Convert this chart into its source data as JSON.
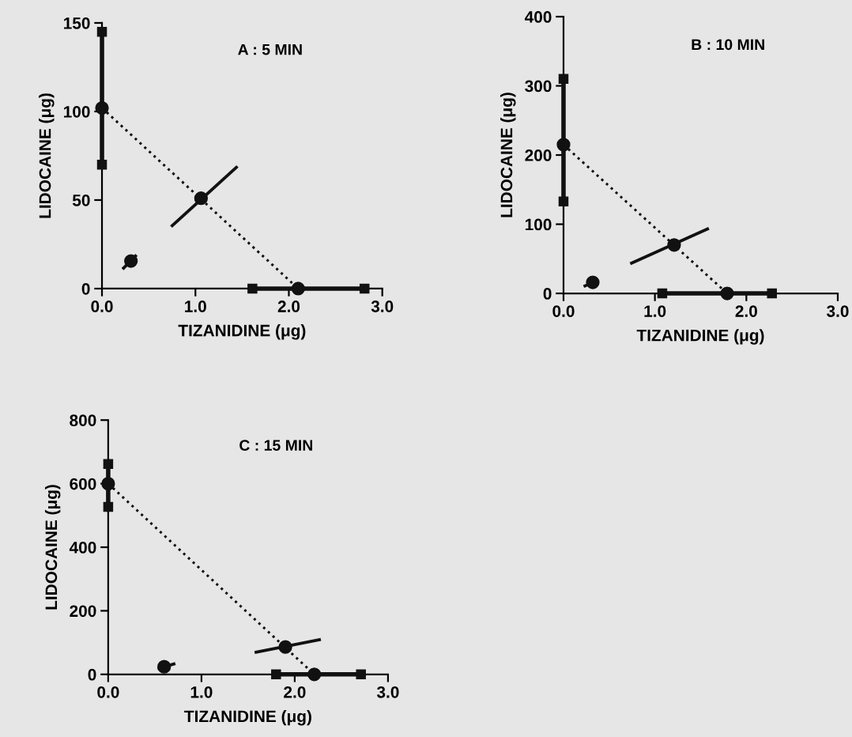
{
  "chart_data": [
    {
      "type": "scatter",
      "title": "A : 5 MIN",
      "xlabel": "TIZANIDINE (μg)",
      "ylabel": "LIDOCAINE (μg)",
      "xlim": [
        0,
        3.0
      ],
      "ylim": [
        0,
        150
      ],
      "xticks": [
        {
          "value": 0,
          "label": "0.0"
        },
        {
          "value": 1,
          "label": "1.0"
        },
        {
          "value": 2,
          "label": "2.0"
        },
        {
          "value": 3,
          "label": "3.0"
        }
      ],
      "yticks": [
        0,
        50,
        100,
        150
      ],
      "grid": false,
      "legend": false,
      "series": [
        {
          "type": "line",
          "color": "#111111",
          "line_style": "solid",
          "marker": "square",
          "x": [
            0,
            0
          ],
          "values": [
            70,
            145
          ]
        },
        {
          "type": "line",
          "color": "#111111",
          "line_style": "solid",
          "marker": "square",
          "x": [
            1.61,
            2.81
          ],
          "values": [
            0,
            0
          ]
        },
        {
          "type": "scatter",
          "color": "#111111",
          "marker": "circle",
          "x": [
            0,
            2.1,
            1.06,
            0.31
          ],
          "values": [
            102,
            0,
            51,
            15.6
          ]
        },
        {
          "type": "line",
          "color": "#111111",
          "line_style": "dotted",
          "x": [
            0,
            2.1
          ],
          "values": [
            102,
            0
          ]
        },
        {
          "type": "line",
          "color": "#111111",
          "line_style": "solid",
          "x": [
            0.74,
            1.45
          ],
          "values": [
            35,
            69
          ]
        },
        {
          "type": "line",
          "color": "#111111",
          "line_style": "solid",
          "x": [
            0.22,
            0.37
          ],
          "values": [
            11,
            19
          ]
        }
      ]
    },
    {
      "type": "scatter",
      "title": "B : 10 MIN",
      "xlabel": "TIZANIDINE (μg)",
      "ylabel": "LIDOCAINE (μg)",
      "xlim": [
        0,
        3.0
      ],
      "ylim": [
        0,
        400
      ],
      "xticks": [
        {
          "value": 0,
          "label": "0.0"
        },
        {
          "value": 1,
          "label": "1.0"
        },
        {
          "value": 2,
          "label": "2.0"
        },
        {
          "value": 3,
          "label": "3.0"
        }
      ],
      "yticks": [
        0,
        100,
        200,
        300,
        400
      ],
      "grid": false,
      "legend": false,
      "series": [
        {
          "type": "line",
          "color": "#111111",
          "line_style": "solid",
          "marker": "square",
          "x": [
            0,
            0
          ],
          "values": [
            133,
            310
          ]
        },
        {
          "type": "line",
          "color": "#111111",
          "line_style": "solid",
          "marker": "square",
          "x": [
            1.08,
            2.28
          ],
          "values": [
            0,
            0
          ]
        },
        {
          "type": "scatter",
          "color": "#111111",
          "marker": "circle",
          "x": [
            0,
            1.79,
            1.21,
            0.32
          ],
          "values": [
            215,
            0,
            70,
            16
          ]
        },
        {
          "type": "line",
          "color": "#111111",
          "line_style": "dotted",
          "x": [
            0,
            1.79
          ],
          "values": [
            215,
            0
          ]
        },
        {
          "type": "line",
          "color": "#111111",
          "line_style": "solid",
          "x": [
            0.73,
            1.59
          ],
          "values": [
            43,
            94
          ]
        },
        {
          "type": "line",
          "color": "#111111",
          "line_style": "solid",
          "x": [
            0.22,
            0.37
          ],
          "values": [
            10,
            18
          ]
        }
      ]
    },
    {
      "type": "scatter",
      "title": "C : 15 MIN",
      "xlabel": "TIZANIDINE (μg)",
      "ylabel": "LIDOCAINE (μg)",
      "xlim": [
        0,
        3.0
      ],
      "ylim": [
        0,
        800
      ],
      "xticks": [
        {
          "value": 0,
          "label": "0.0"
        },
        {
          "value": 1,
          "label": "1.0"
        },
        {
          "value": 2,
          "label": "2.0"
        },
        {
          "value": 3,
          "label": "3.0"
        }
      ],
      "yticks": [
        0,
        200,
        400,
        600,
        800
      ],
      "grid": false,
      "legend": false,
      "series": [
        {
          "type": "line",
          "color": "#111111",
          "line_style": "solid",
          "marker": "square",
          "x": [
            0,
            0
          ],
          "values": [
            527,
            662
          ]
        },
        {
          "type": "line",
          "color": "#111111",
          "line_style": "solid",
          "marker": "square",
          "x": [
            1.8,
            2.71
          ],
          "values": [
            0,
            0
          ]
        },
        {
          "type": "scatter",
          "color": "#111111",
          "marker": "circle",
          "x": [
            0,
            2.21,
            1.9,
            0.6
          ],
          "values": [
            600,
            0,
            86,
            24
          ]
        },
        {
          "type": "line",
          "color": "#111111",
          "line_style": "dotted",
          "x": [
            0,
            2.21
          ],
          "values": [
            600,
            0
          ]
        },
        {
          "type": "line",
          "color": "#111111",
          "line_style": "solid",
          "x": [
            1.57,
            2.28
          ],
          "values": [
            69,
            110
          ]
        },
        {
          "type": "line",
          "color": "#111111",
          "line_style": "solid",
          "x": [
            0.53,
            0.72
          ],
          "values": [
            18,
            34
          ]
        }
      ]
    }
  ]
}
